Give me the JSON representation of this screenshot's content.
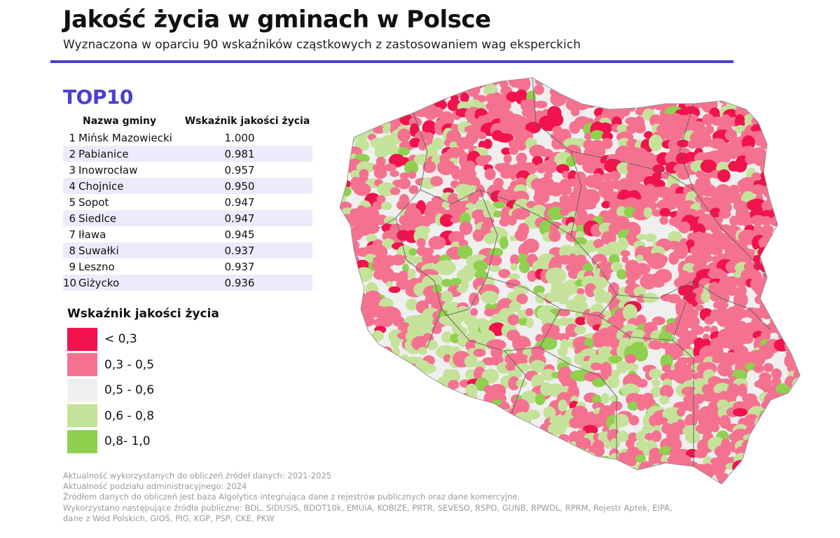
{
  "header": {
    "title": "Jakość życia w gminach w Polsce",
    "subtitle": "Wyznaczona w oparciu 90 wskaźników cząstkowych z zastosowaniem wag eksperckich"
  },
  "top10": {
    "heading": "TOP10",
    "columns": {
      "name": "Nazwa gminy",
      "value": "Wskaźnik jakości życia"
    },
    "rows": [
      {
        "rank": "1",
        "name": "Mińsk Mazowiecki",
        "value": "1.000"
      },
      {
        "rank": "2",
        "name": "Pabianice",
        "value": "0.981"
      },
      {
        "rank": "3",
        "name": "Inowrocław",
        "value": "0.957"
      },
      {
        "rank": "4",
        "name": "Chojnice",
        "value": "0.950"
      },
      {
        "rank": "5",
        "name": "Sopot",
        "value": "0.947"
      },
      {
        "rank": "6",
        "name": "Siedlce",
        "value": "0.947"
      },
      {
        "rank": "7",
        "name": "Iława",
        "value": "0.945"
      },
      {
        "rank": "8",
        "name": "Suwałki",
        "value": "0.937"
      },
      {
        "rank": "9",
        "name": "Leszno",
        "value": "0.937"
      },
      {
        "rank": "10",
        "name": "Giżycko",
        "value": "0.936"
      }
    ]
  },
  "legend": {
    "title": "Wskaźnik jakości życia",
    "items": [
      {
        "label": "< 0,3",
        "color": "#f0134d"
      },
      {
        "label": "0,3 - 0,5",
        "color": "#f4728f"
      },
      {
        "label": "0,5 - 0,6",
        "color": "#efefef"
      },
      {
        "label": "0,6 - 0,8",
        "color": "#c5e29a"
      },
      {
        "label": "0,8- 1,0",
        "color": "#8fd04e"
      }
    ]
  },
  "map": {
    "colors": {
      "low": "#f0134d",
      "midlow": "#f4728f",
      "mid": "#efefef",
      "midhigh": "#c5e29a",
      "high": "#8fd04e",
      "border": "#555555"
    }
  },
  "footnotes": [
    "Aktualność wykorzystanych do obliczeń źródeł danych: 2021-2025",
    "Aktualność podziału administracyjnego: 2024",
    "Źródłem danych do obliczeń jest baza Algolytics integrująca dane z rejestrów publicznych oraz dane komercyjne.",
    "Wykorzystano następujące źródła publiczne: BDL, SIDUSIS, BDOT10k, EMUiA, KOBIZE, PRTR, SEVESO, RSPO, GUNB, RPWDL, RPRM, Rejestr Aptek, EIPA,",
    "dane z Wód Polskich, GIOŚ, PIG, KGP, PSP, CKE, PKW"
  ]
}
